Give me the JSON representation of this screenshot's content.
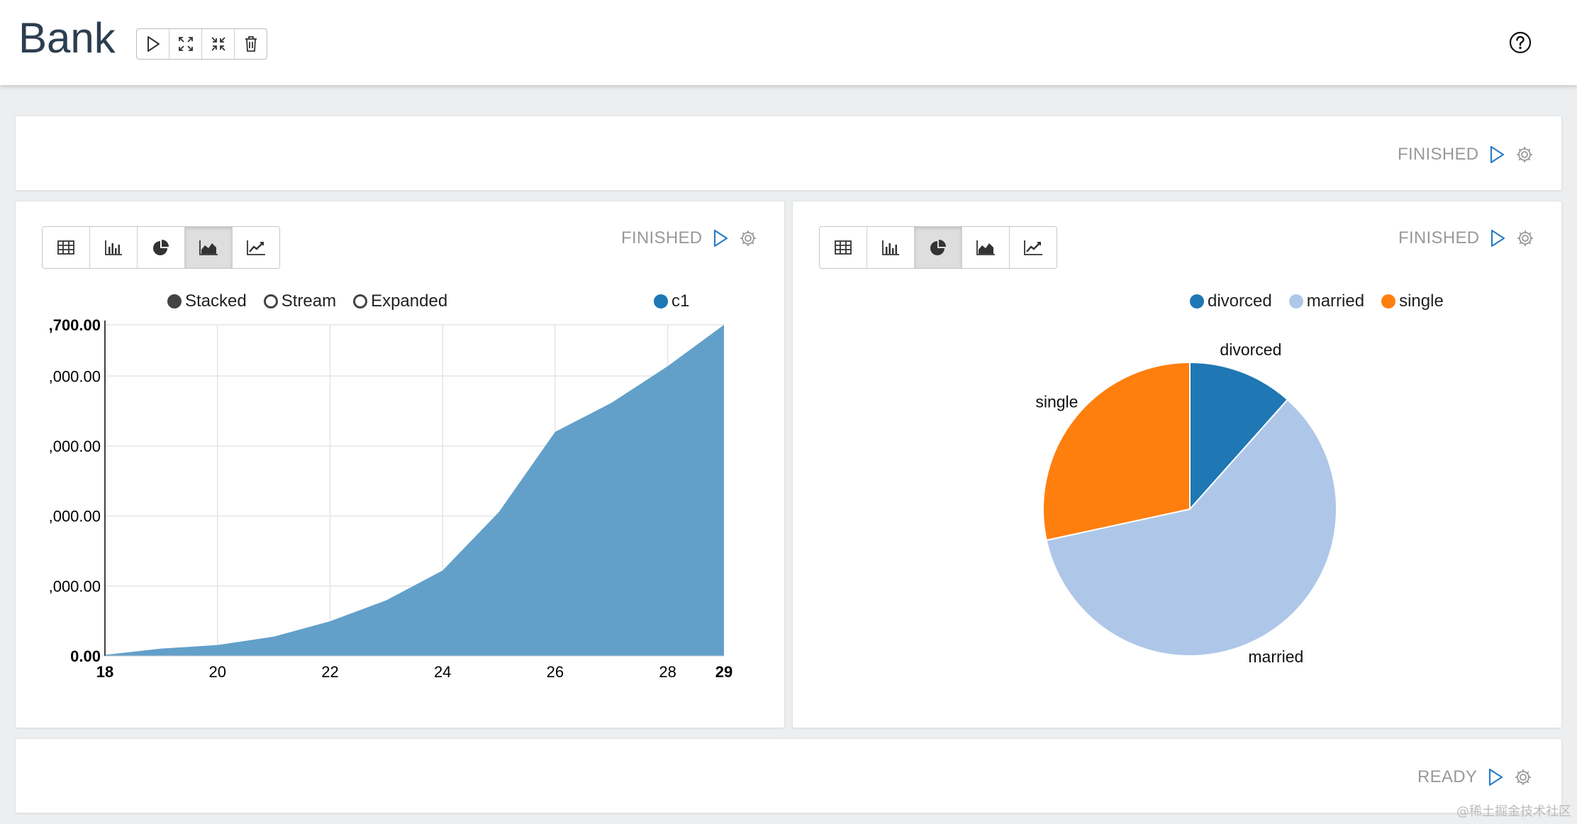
{
  "app": {
    "title": "Bank",
    "toolbar": [
      {
        "icon": "play-icon",
        "name": "run-all-button"
      },
      {
        "icon": "expand-icon",
        "name": "show-all-button"
      },
      {
        "icon": "collapse-icon",
        "name": "hide-all-button"
      },
      {
        "icon": "trash-icon",
        "name": "clear-output-button"
      }
    ],
    "help_icon": "question-circle-icon"
  },
  "paragraphs": [
    {
      "status": "FINISHED"
    },
    {
      "status": "FINISHED",
      "viz_buttons": [
        "table-icon",
        "bar-chart-icon",
        "pie-chart-icon",
        "area-chart-icon",
        "line-chart-icon"
      ],
      "active_viz": "area-chart-icon",
      "modes": [
        {
          "label": "Stacked",
          "selected": true
        },
        {
          "label": "Stream",
          "selected": false
        },
        {
          "label": "Expanded",
          "selected": false
        }
      ],
      "series_legend": "c1"
    },
    {
      "status": "FINISHED",
      "viz_buttons": [
        "table-icon",
        "bar-chart-icon",
        "pie-chart-icon",
        "area-chart-icon",
        "line-chart-icon"
      ],
      "active_viz": "pie-chart-icon",
      "legend": [
        "divorced",
        "married",
        "single"
      ]
    },
    {
      "status": "READY"
    }
  ],
  "chart_data": [
    {
      "type": "area",
      "x": [
        18,
        19,
        20,
        21,
        22,
        23,
        24,
        25,
        26,
        27,
        28,
        29
      ],
      "series": [
        {
          "name": "c1",
          "values": [
            500,
            3500,
            5200,
            9200,
            16500,
            26500,
            40700,
            68500,
            106700,
            120500,
            138000,
            157700
          ]
        }
      ],
      "xlim": [
        18,
        29
      ],
      "ylim": [
        0,
        157700
      ],
      "y_tick_labels": [
        ",700.00",
        ",000.00",
        ",000.00",
        ",000.00",
        ",000.00",
        "0.00"
      ],
      "x_tick_labels": [
        "18",
        "20",
        "22",
        "24",
        "26",
        "28",
        "29"
      ],
      "color": "#5f9ec9",
      "grid": true
    },
    {
      "type": "pie",
      "categories": [
        "divorced",
        "married",
        "single"
      ],
      "values": [
        11.6,
        60.0,
        28.4
      ],
      "colors": [
        "#1f77b4",
        "#aec7e8",
        "#ff7f0e"
      ],
      "labels": [
        "divorced",
        "married",
        "single"
      ]
    }
  ],
  "watermark": "@稀土掘金技术社区"
}
